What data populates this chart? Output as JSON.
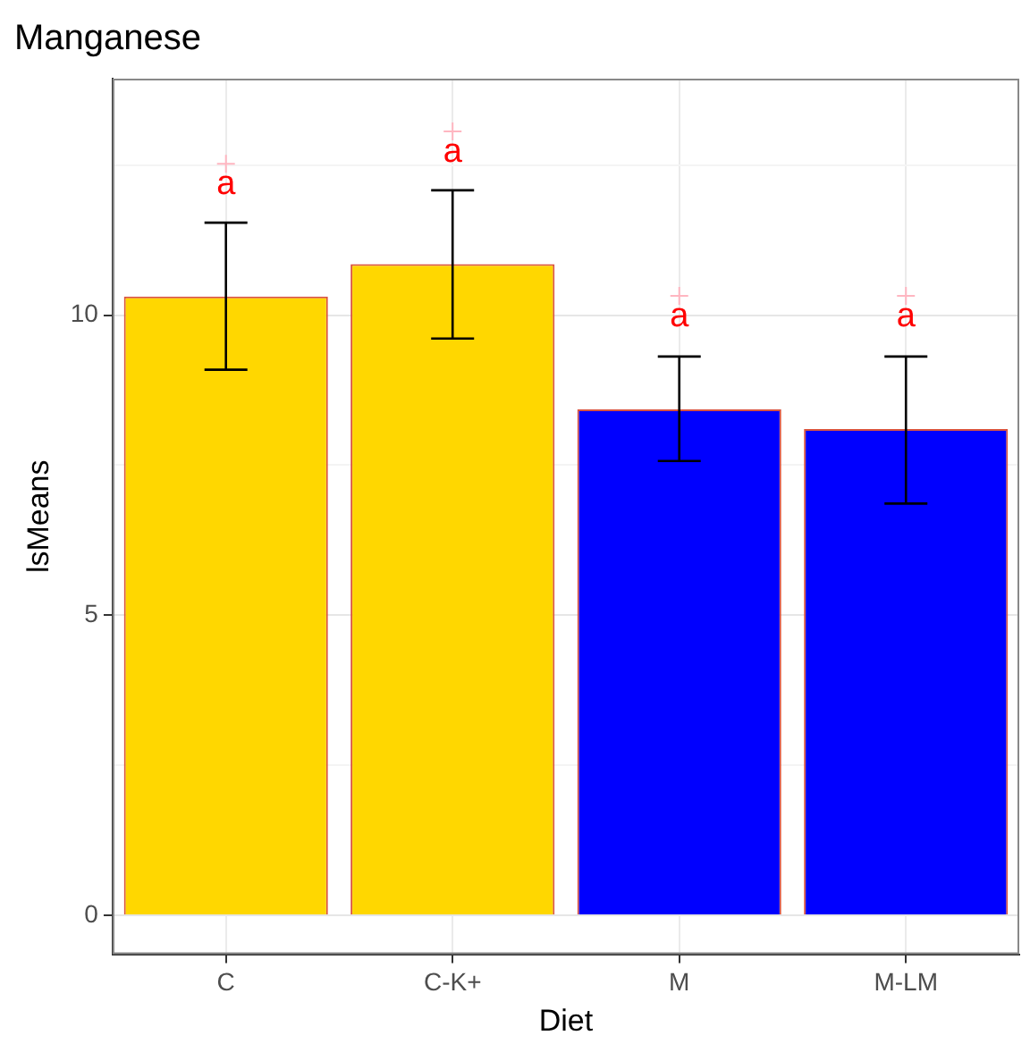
{
  "chart_data": {
    "type": "bar",
    "title": "Manganese",
    "xlabel": "Diet",
    "ylabel": "lsMeans",
    "categories": [
      "C",
      "C-K+",
      "M",
      "M-LM"
    ],
    "series": [
      {
        "colors": [
          "#ffd700",
          "#ffd700",
          "#0000ff",
          "#0000ff"
        ],
        "values": [
          10.31,
          10.85,
          8.43,
          8.1
        ],
        "errors": [
          [
            9.09,
            11.54
          ],
          [
            9.61,
            12.08
          ],
          [
            7.57,
            9.31
          ],
          [
            6.86,
            9.31
          ]
        ]
      },
      {
        "type": "scatter",
        "color": "#ffb6c1",
        "marker": "cross",
        "x": [
          "C",
          "C-K+",
          "M",
          "M-LM"
        ],
        "values": [
          12.52,
          13.06,
          10.32,
          10.32
        ]
      }
    ],
    "annotations": [
      {
        "text": "a",
        "x": "C",
        "y": 12.52
      },
      {
        "text": "a",
        "x": "C-K+",
        "y": 13.06
      },
      {
        "text": "a",
        "x": "M",
        "y": 10.32
      },
      {
        "text": "a",
        "x": "M-LM",
        "y": 10.32
      }
    ],
    "ylim": [
      -0.65,
      13.94
    ],
    "yticks": [
      0,
      {
        "value": 2.5,
        "label": null
      },
      5,
      {
        "value": 7.5,
        "label": null
      },
      10,
      {
        "value": 12.5,
        "label": null
      }
    ],
    "grid": true,
    "legend": false
  }
}
